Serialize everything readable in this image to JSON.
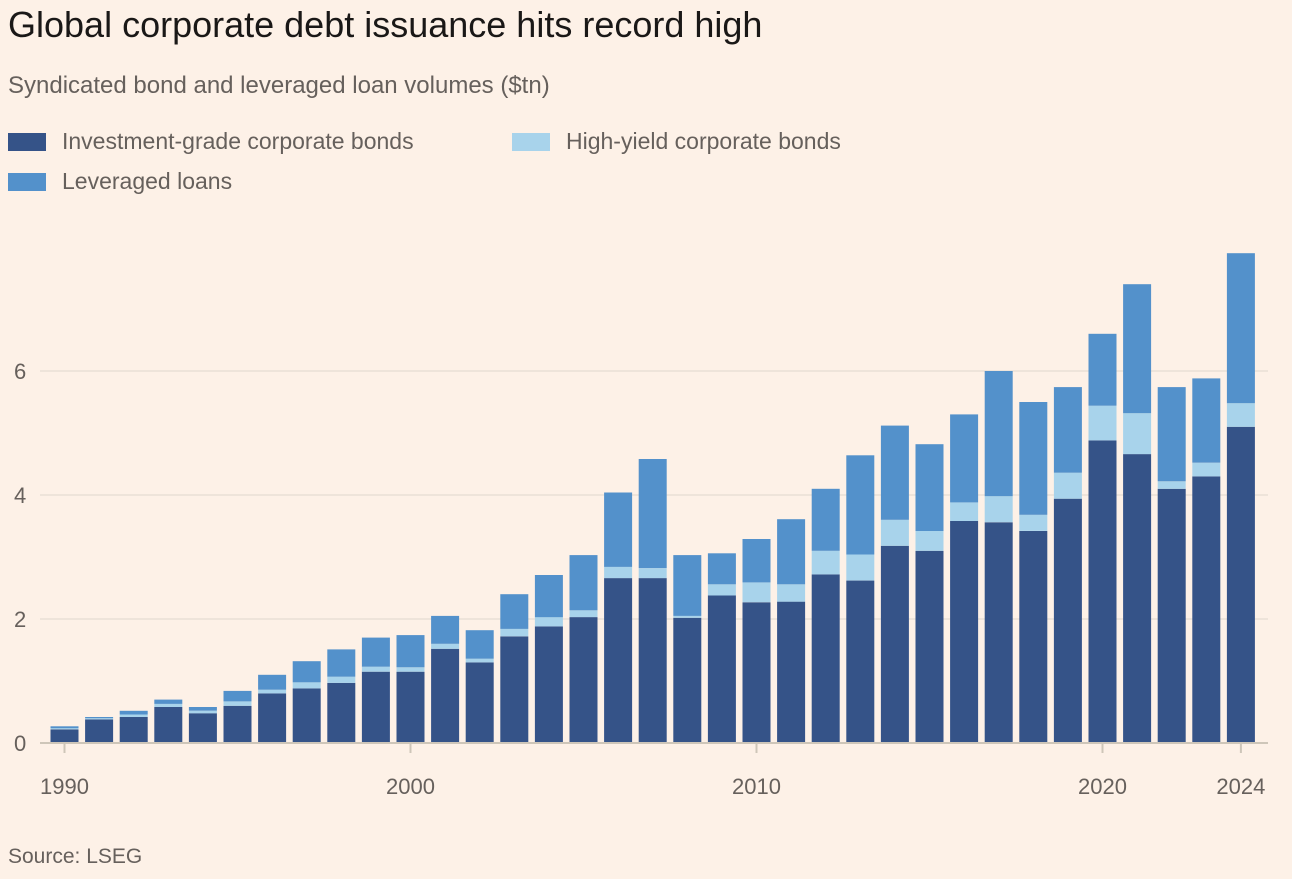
{
  "header": {
    "title": "Global corporate debt issuance hits record high",
    "subtitle": "Syndicated bond and leveraged loan volumes ($tn)"
  },
  "legend": {
    "ig_label": "Investment-grade corporate bonds",
    "hy_label": "High-yield corporate bonds",
    "ll_label": "Leveraged loans"
  },
  "footer": {
    "source": "Source: LSEG"
  },
  "colors": {
    "background": "#FDF1E7",
    "ig": "#355388",
    "hy": "#A8D3EB",
    "ll": "#5391CB",
    "grid": "#E9DFD6",
    "axis": "#CEC6B9"
  },
  "chart_data": {
    "type": "bar",
    "stacked": true,
    "title": "Global corporate debt issuance hits record high",
    "subtitle": "Syndicated bond and leveraged loan volumes ($tn)",
    "xlabel": "",
    "ylabel": "",
    "ylim": [
      0,
      8
    ],
    "yticks": [
      0,
      2,
      4,
      6
    ],
    "grid": true,
    "legend_position": "top-left",
    "source": "Source: LSEG",
    "x_tick_labels": [
      {
        "year": 1990,
        "label": "1990"
      },
      {
        "year": 2000,
        "label": "2000"
      },
      {
        "year": 2010,
        "label": "2010"
      },
      {
        "year": 2020,
        "label": "2020"
      },
      {
        "year": 2024,
        "label": "2024"
      }
    ],
    "categories": [
      1990,
      1991,
      1992,
      1993,
      1994,
      1995,
      1996,
      1997,
      1998,
      1999,
      2000,
      2001,
      2002,
      2003,
      2004,
      2005,
      2006,
      2007,
      2008,
      2009,
      2010,
      2011,
      2012,
      2013,
      2014,
      2015,
      2016,
      2017,
      2018,
      2019,
      2020,
      2021,
      2022,
      2023,
      2024
    ],
    "series": [
      {
        "name": "Investment-grade corporate bonds",
        "key": "ig",
        "values": [
          0.22,
          0.38,
          0.42,
          0.58,
          0.48,
          0.6,
          0.8,
          0.88,
          0.97,
          1.15,
          1.15,
          1.52,
          1.3,
          1.72,
          1.88,
          2.03,
          2.66,
          2.66,
          2.02,
          2.38,
          2.27,
          2.28,
          2.72,
          2.62,
          3.18,
          3.1,
          3.58,
          3.56,
          3.42,
          3.94,
          4.88,
          4.66,
          4.1,
          4.3,
          5.1
        ]
      },
      {
        "name": "High-yield corporate bonds",
        "key": "hy",
        "values": [
          0.02,
          0.02,
          0.04,
          0.05,
          0.04,
          0.07,
          0.06,
          0.1,
          0.1,
          0.08,
          0.07,
          0.08,
          0.06,
          0.12,
          0.15,
          0.11,
          0.18,
          0.16,
          0.03,
          0.18,
          0.32,
          0.28,
          0.38,
          0.42,
          0.42,
          0.32,
          0.3,
          0.42,
          0.26,
          0.42,
          0.56,
          0.66,
          0.12,
          0.22,
          0.38
        ]
      },
      {
        "name": "Leveraged loans",
        "key": "ll",
        "values": [
          0.03,
          0.02,
          0.06,
          0.07,
          0.06,
          0.17,
          0.24,
          0.34,
          0.44,
          0.47,
          0.52,
          0.45,
          0.46,
          0.56,
          0.68,
          0.89,
          1.2,
          1.76,
          0.98,
          0.5,
          0.7,
          1.05,
          1.0,
          1.6,
          1.52,
          1.4,
          1.42,
          2.02,
          1.82,
          1.38,
          1.16,
          2.08,
          1.52,
          1.36,
          2.42
        ]
      }
    ]
  }
}
